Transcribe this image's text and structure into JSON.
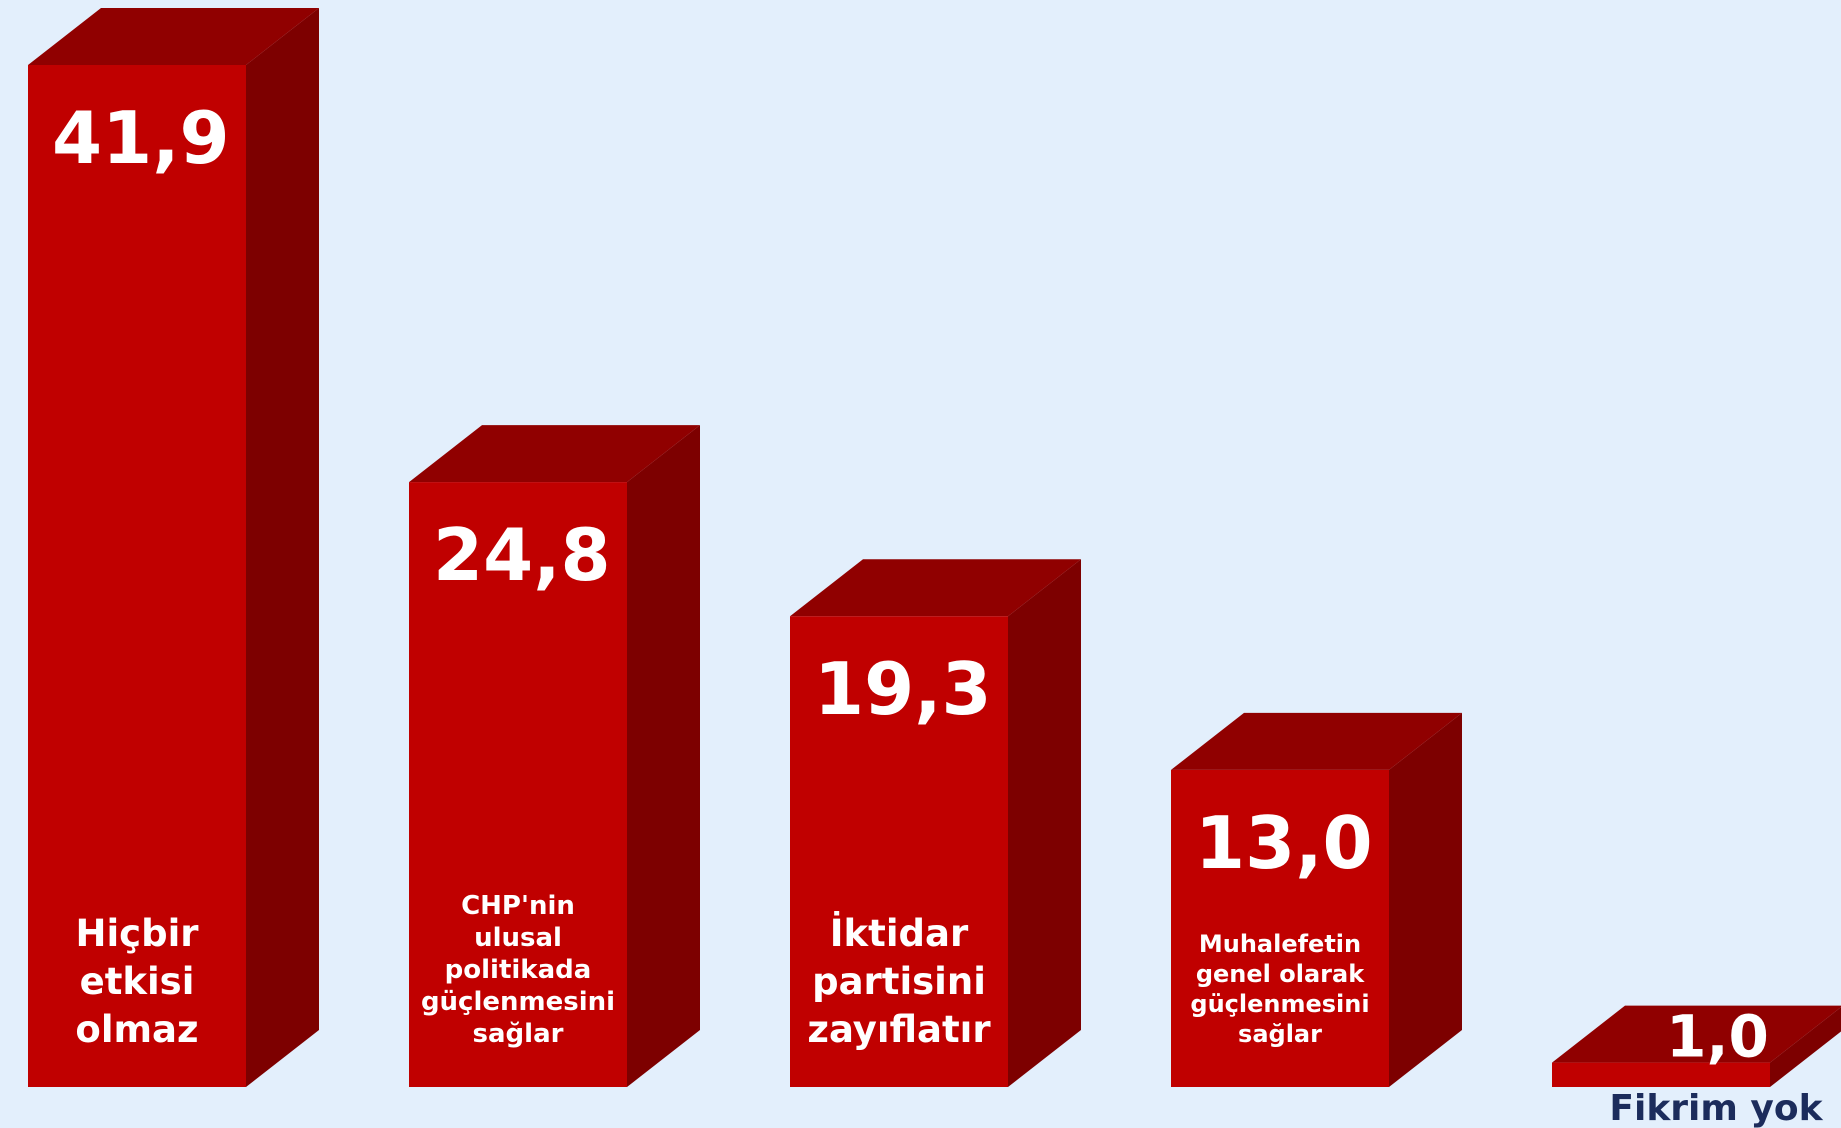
{
  "colors": {
    "background": "#e3effc",
    "bar_front": "#c00000",
    "bar_side": "#7d0000",
    "bar_top": "#900000",
    "value_text": "#ffffff",
    "label_text": "#ffffff",
    "outside_label_text": "#1c2c5c"
  },
  "chart_data": {
    "type": "bar",
    "title": "",
    "xlabel": "",
    "ylabel": "",
    "ylim": [
      0,
      41.9
    ],
    "grid": false,
    "legend": "none",
    "categories": [
      "Hiçbir etkisi olmaz",
      "CHP'nin ulusal politikada güçlenmesini sağlar",
      "İktidar partisini zayıflatır",
      "Muhalefetin genel olarak güçlenmesini sağlar",
      "Fikrim yok"
    ],
    "values": [
      41.9,
      24.8,
      19.3,
      13.0,
      1.0
    ],
    "value_labels": [
      "41,9",
      "24,8",
      "19,3",
      "13,0",
      "1,0"
    ],
    "label_lines": [
      [
        "Hiçbir",
        "etkisi",
        "olmaz"
      ],
      [
        "CHP'nin",
        "ulusal",
        "politikada",
        "güçlenmesini",
        "sağlar"
      ],
      [
        "İktidar",
        "partisini",
        "zayıflatır"
      ],
      [
        "Muhalefetin",
        "genel olarak",
        "güçlenmesini",
        "sağlar"
      ],
      [
        "Fikrim yok"
      ]
    ]
  }
}
